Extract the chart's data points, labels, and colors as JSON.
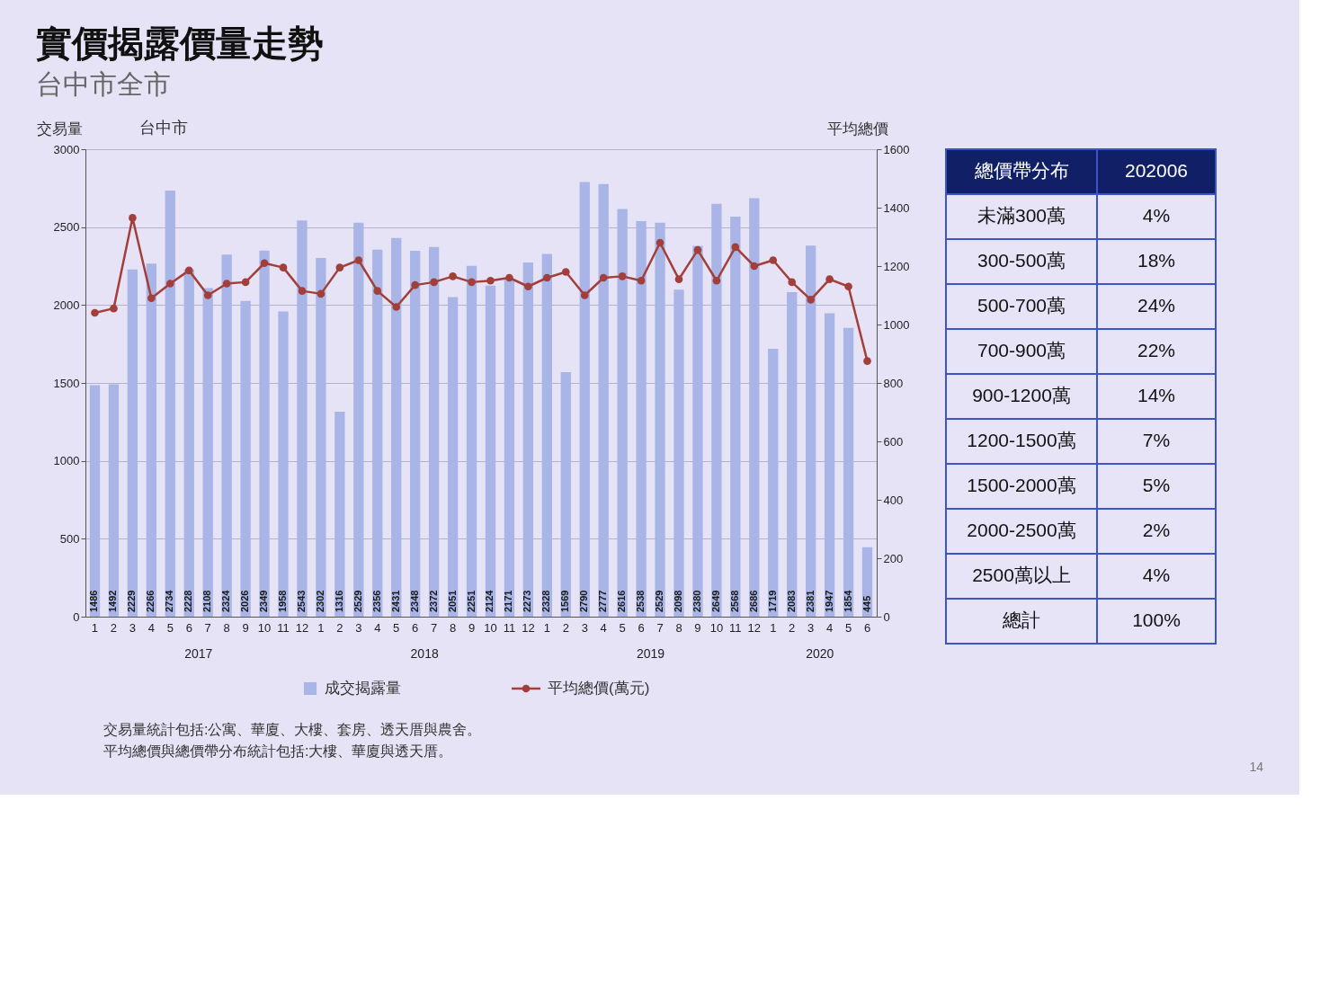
{
  "chart_data": [
    {
      "type": "bar",
      "title": "實價揭露價量走勢",
      "subtitle": "台中市全市",
      "ylabel": "交易量",
      "y2label": "平均總價",
      "x": [
        "2017-01",
        "2017-02",
        "2017-03",
        "2017-04",
        "2017-05",
        "2017-06",
        "2017-07",
        "2017-08",
        "2017-09",
        "2017-10",
        "2017-11",
        "2017-12",
        "2018-01",
        "2018-02",
        "2018-03",
        "2018-04",
        "2018-05",
        "2018-06",
        "2018-07",
        "2018-08",
        "2018-09",
        "2018-10",
        "2018-11",
        "2018-12",
        "2019-01",
        "2019-02",
        "2019-03",
        "2019-04",
        "2019-05",
        "2019-06",
        "2019-07",
        "2019-08",
        "2019-09",
        "2019-10",
        "2019-11",
        "2019-12",
        "2020-01",
        "2020-02",
        "2020-03",
        "2020-04",
        "2020-05",
        "2020-06"
      ],
      "xlim": [
        "2017-01",
        "2020-06"
      ],
      "xticks": [
        {
          "value": "2017-01",
          "label": "1"
        },
        {
          "value": "2017-02",
          "label": "2"
        },
        {
          "value": "2017-03",
          "label": "3"
        },
        {
          "value": "2017-04",
          "label": "4"
        },
        {
          "value": "2017-05",
          "label": "5"
        },
        {
          "value": "2017-06",
          "label": "6"
        },
        {
          "value": "2017-07",
          "label": "7"
        },
        {
          "value": "2017-08",
          "label": "8"
        },
        {
          "value": "2017-09",
          "label": "9"
        },
        {
          "value": "2017-10",
          "label": "10"
        },
        {
          "value": "2017-11",
          "label": "11"
        },
        {
          "value": "2017-12",
          "label": "12"
        },
        {
          "value": "2018-01",
          "label": "1"
        },
        {
          "value": "2018-02",
          "label": "2"
        },
        {
          "value": "2018-03",
          "label": "3"
        },
        {
          "value": "2018-04",
          "label": "4"
        },
        {
          "value": "2018-05",
          "label": "5"
        },
        {
          "value": "2018-06",
          "label": "6"
        },
        {
          "value": "2018-07",
          "label": "7"
        },
        {
          "value": "2018-08",
          "label": "8"
        },
        {
          "value": "2018-09",
          "label": "9"
        },
        {
          "value": "2018-10",
          "label": "10"
        },
        {
          "value": "2018-11",
          "label": "11"
        },
        {
          "value": "2018-12",
          "label": "12"
        },
        {
          "value": "2019-01",
          "label": "1"
        },
        {
          "value": "2019-02",
          "label": "2"
        },
        {
          "value": "2019-03",
          "label": "3"
        },
        {
          "value": "2019-04",
          "label": "4"
        },
        {
          "value": "2019-05",
          "label": "5"
        },
        {
          "value": "2019-06",
          "label": "6"
        },
        {
          "value": "2019-07",
          "label": "7"
        },
        {
          "value": "2019-08",
          "label": "8"
        },
        {
          "value": "2019-09",
          "label": "9"
        },
        {
          "value": "2019-10",
          "label": "10"
        },
        {
          "value": "2019-11",
          "label": "11"
        },
        {
          "value": "2019-12",
          "label": "12"
        },
        {
          "value": "2020-01",
          "label": "1"
        },
        {
          "value": "2020-02",
          "label": "2"
        },
        {
          "value": "2020-03",
          "label": "3"
        },
        {
          "value": "2020-04",
          "label": "4"
        },
        {
          "value": "2020-05",
          "label": "5"
        },
        {
          "value": "2020-06",
          "label": "6"
        }
      ],
      "x2lim": [
        "2017-01",
        "2020-06"
      ],
      "x2ticks": [
        {
          "value": "2017-06-16",
          "label": "2017"
        },
        {
          "value": "2018-06-16",
          "label": "2018"
        },
        {
          "value": "2019-06-16",
          "label": "2019"
        },
        {
          "value": "2020-03-16",
          "label": "2020"
        }
      ],
      "ylim": [
        0,
        3000
      ],
      "yticks": [
        0,
        500,
        1000,
        1500,
        2000,
        2500,
        3000
      ],
      "y2lim": [
        0,
        1600
      ],
      "y2ticks": [
        0,
        200,
        400,
        600,
        800,
        1000,
        1200,
        1400,
        1600
      ],
      "grid": "y",
      "legend": "bottom",
      "series": [
        {
          "name": "成交揭露量",
          "type": "bar",
          "color": "#a8b5e6",
          "data_labels": true,
          "values": [
            1486,
            1492,
            2229,
            2266,
            2734,
            2228,
            2108,
            2324,
            2026,
            2349,
            1958,
            2543,
            2302,
            1316,
            2529,
            2356,
            2431,
            2348,
            2372,
            2051,
            2251,
            2124,
            2171,
            2273,
            2328,
            1569,
            2790,
            2777,
            2616,
            2538,
            2529,
            2098,
            2380,
            2649,
            2568,
            2686,
            1719,
            2083,
            2381,
            1947,
            1854,
            445
          ]
        },
        {
          "name": "平均總價(萬元)",
          "type": "line",
          "axis": "y2",
          "color": "#a33f3a",
          "marker": "circle",
          "line_style": "solid",
          "values": [
            1040,
            1055,
            1365,
            1090,
            1140,
            1185,
            1100,
            1140,
            1145,
            1210,
            1195,
            1115,
            1105,
            1195,
            1220,
            1115,
            1060,
            1135,
            1145,
            1165,
            1145,
            1150,
            1160,
            1130,
            1160,
            1180,
            1100,
            1160,
            1165,
            1150,
            1280,
            1155,
            1255,
            1150,
            1265,
            1200,
            1220,
            1145,
            1085,
            1155,
            1130,
            875
          ]
        }
      ],
      "annotations": [
        "台中市",
        "交易量統計包括:公寓、華廈、大樓、套房、透天厝與農舍。",
        "平均總價與總價帶分布統計包括:大樓、華廈與透天厝。",
        "14"
      ]
    },
    {
      "type": "other",
      "xlabel": "總價帶分布",
      "categories": [
        "未滿300萬",
        "300-500萬",
        "500-700萬",
        "700-900萬",
        "900-1200萬",
        "1200-1500萬",
        "1500-2000萬",
        "2000-2500萬",
        "2500萬以上",
        "總計"
      ],
      "series": [
        {
          "name": "202006",
          "values": [
            4,
            18,
            24,
            22,
            14,
            7,
            5,
            2,
            4,
            100
          ],
          "value_labels": [
            "4%",
            "18%",
            "24%",
            "22%",
            "14%",
            "7%",
            "5%",
            "2%",
            "4%",
            "100%"
          ]
        }
      ]
    }
  ]
}
